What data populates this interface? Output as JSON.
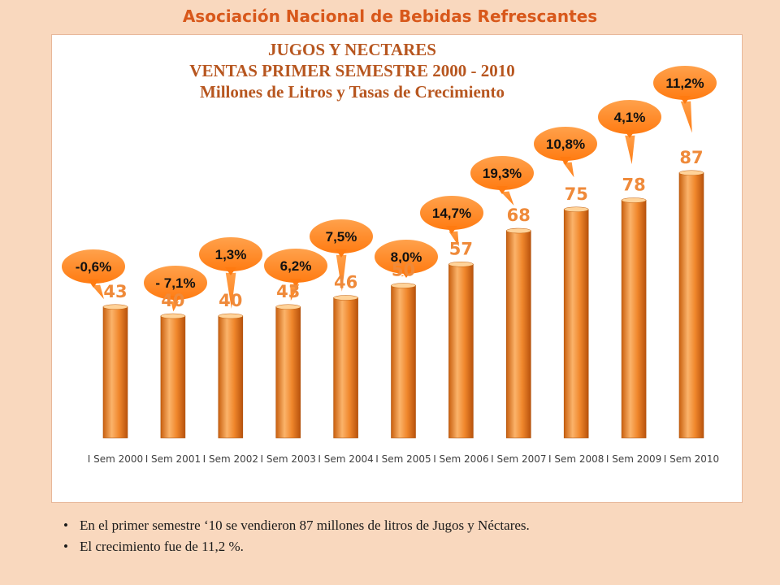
{
  "slide": {
    "title": "Asociación Nacional de Bebidas  Refrescantes"
  },
  "chart_data": {
    "type": "bar",
    "title_lines": [
      "JUGOS Y NECTARES",
      "VENTAS PRIMER SEMESTRE 2000 - 2010",
      "Millones de Litros y Tasas de Crecimiento"
    ],
    "categories": [
      "I Sem 2000",
      "I Sem 2001",
      "I Sem 2002",
      "I Sem 2003",
      "I Sem 2004",
      "I Sem 2005",
      "I Sem 2006",
      "I Sem 2007",
      "I Sem 2008",
      "I Sem 2009",
      "I Sem 2010"
    ],
    "values": [
      43,
      40,
      40,
      43,
      46,
      50,
      57,
      68,
      75,
      78,
      87
    ],
    "growth_labels": [
      "-0,6%",
      "- 7,1%",
      "1,3%",
      "6,2%",
      "7,5%",
      "8,0%",
      "14,7%",
      "19,3%",
      "10,8%",
      "4,1%",
      "11,2%"
    ],
    "xlabel": "",
    "ylabel": "",
    "ylim": [
      0,
      100
    ],
    "grid": false,
    "legend": "none",
    "colors": {
      "bar": "#f0872c",
      "bar_light": "#fbb36a",
      "bar_dark": "#c55a11",
      "bar_value": "#ef8a3a",
      "bubble": "#ff8a2a"
    }
  },
  "notes": [
    "En el primer semestre  ‘10 se vendieron 87 millones de litros de Jugos y Néctares.",
    "El crecimiento  fue de 11,2 %."
  ]
}
